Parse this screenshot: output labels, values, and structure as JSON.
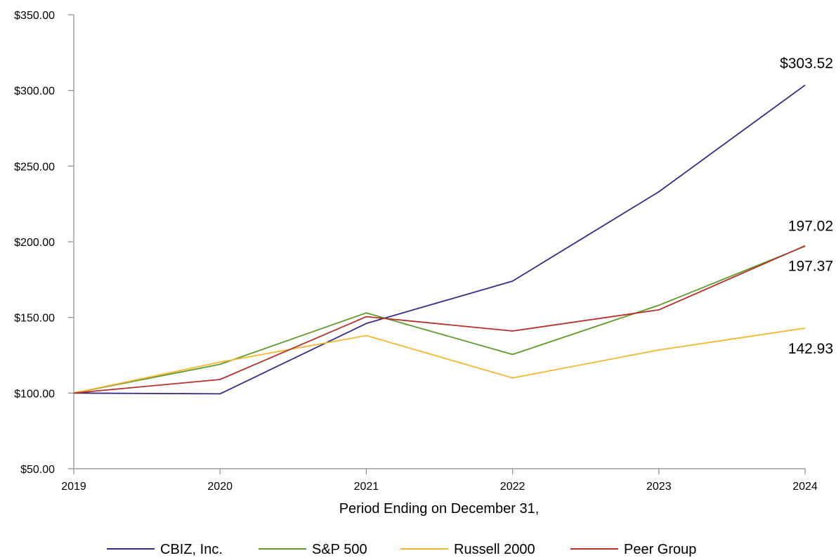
{
  "chart_data": {
    "type": "line",
    "title": "",
    "xlabel": "Period Ending on December 31,",
    "ylabel": "",
    "categories": [
      "2019",
      "2020",
      "2021",
      "2022",
      "2023",
      "2024"
    ],
    "ylim": [
      50,
      350
    ],
    "yticks": [
      50,
      100,
      150,
      200,
      250,
      300,
      350
    ],
    "ytick_labels": [
      "$50.00",
      "$100.00",
      "$150.00",
      "$200.00",
      "$250.00",
      "$300.00",
      "$350.00"
    ],
    "grid": false,
    "legend_position": "bottom",
    "series": [
      {
        "name": "CBIZ, Inc.",
        "color": "#3b2a87",
        "values": [
          100.0,
          99.5,
          146.0,
          174.0,
          233.0,
          303.52
        ]
      },
      {
        "name": "S&P 500",
        "color": "#5e9a2a",
        "values": [
          100.0,
          119.0,
          153.0,
          125.5,
          158.0,
          197.02
        ]
      },
      {
        "name": "Russell 2000",
        "color": "#f2b630",
        "values": [
          100.0,
          120.5,
          138.0,
          110.0,
          128.5,
          142.93
        ]
      },
      {
        "name": "Peer Group",
        "color": "#b5302a",
        "values": [
          100.0,
          109.0,
          150.5,
          141.0,
          155.0,
          197.37
        ]
      }
    ],
    "end_labels": [
      {
        "text": "$303.52",
        "value": 303.52,
        "series": "CBIZ, Inc."
      },
      {
        "text": "197.02",
        "value": 197.02,
        "series": "S&P 500"
      },
      {
        "text": "197.37",
        "value": 197.37,
        "series": "Peer Group"
      },
      {
        "text": "142.93",
        "value": 142.93,
        "series": "Russell 2000"
      }
    ]
  }
}
